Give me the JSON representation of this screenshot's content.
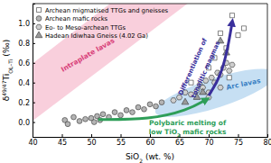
{
  "chart_data": {
    "type": "scatter",
    "x_label": [
      "SiO",
      "2",
      " (wt. %)"
    ],
    "y_label": [
      "δ",
      "49/47",
      "Ti",
      "OL–Ti",
      " (‰)"
    ],
    "xlim": [
      40,
      80
    ],
    "xticks": [
      40,
      45,
      50,
      55,
      60,
      65,
      70,
      75,
      80
    ],
    "ylim": [
      -0.15,
      1.2
    ],
    "yticks": [
      {
        "value": 0,
        "label": "0.0"
      },
      {
        "value": 0.2,
        "label": "0.2"
      },
      {
        "value": 0.4,
        "label": "0.4"
      },
      {
        "value": 0.6,
        "label": "0.6"
      },
      {
        "value": 0.8,
        "label": "0.8"
      },
      {
        "value": 1,
        "label": "1.0"
      }
    ],
    "legend": "upper left",
    "annotations": {
      "intraplate": "Intraplate lavas",
      "arc": "Arc lavas",
      "differentiation_line1": "Differentiation of",
      "differentiation_line2": "tonalitic magmas",
      "melting_line1": "Polybaric melting of",
      "melting_line2": [
        "low TiO",
        "2",
        " mafic rocks"
      ]
    },
    "series": [
      {
        "name": "Archean migmatised TTGs and gneisses",
        "color": "#ffffff",
        "marker": "square",
        "x": [
          67,
          70,
          72,
          73,
          74,
          75,
          71,
          76,
          73.5
        ],
        "values": [
          0.4,
          0.55,
          0.9,
          0.75,
          1.08,
          0.88,
          0.65,
          0.95,
          0.45
        ]
      },
      {
        "name": "Archean mafic rocks",
        "color": "#b4b4b4",
        "marker": "circle",
        "x": [
          45.5,
          46,
          47,
          48,
          49,
          50,
          50.5,
          51,
          51.5,
          52,
          53,
          54,
          55,
          56,
          57,
          58,
          59,
          60,
          61,
          62
        ],
        "values": [
          0.02,
          -0.02,
          0.05,
          0.01,
          0.03,
          0.04,
          0.0,
          0.06,
          0.02,
          0.08,
          0.05,
          0.1,
          0.07,
          0.12,
          0.1,
          0.15,
          0.13,
          0.18,
          0.16,
          0.2
        ]
      },
      {
        "name": "Eo- to Meso-archean TTGs",
        "color": "#cfcfcf",
        "marker": "hexagon",
        "x": [
          64,
          65,
          66,
          67,
          68,
          68.5,
          69,
          69.5,
          70,
          70.5,
          71,
          71.5,
          72,
          72.5,
          73,
          73.5,
          74,
          70,
          72
        ],
        "values": [
          0.22,
          0.25,
          0.3,
          0.28,
          0.32,
          0.38,
          0.35,
          0.42,
          0.3,
          0.45,
          0.4,
          0.5,
          0.48,
          0.55,
          0.6,
          0.52,
          0.58,
          0.25,
          0.35
        ]
      },
      {
        "name": "Hadean Idiwhaa Gneiss (4.02 Ga)",
        "color": "#9a9a9a",
        "marker": "triangle",
        "x": [
          66,
          68,
          72,
          73,
          69
        ],
        "values": [
          0.2,
          0.25,
          0.82,
          0.7,
          0.3
        ]
      }
    ]
  }
}
